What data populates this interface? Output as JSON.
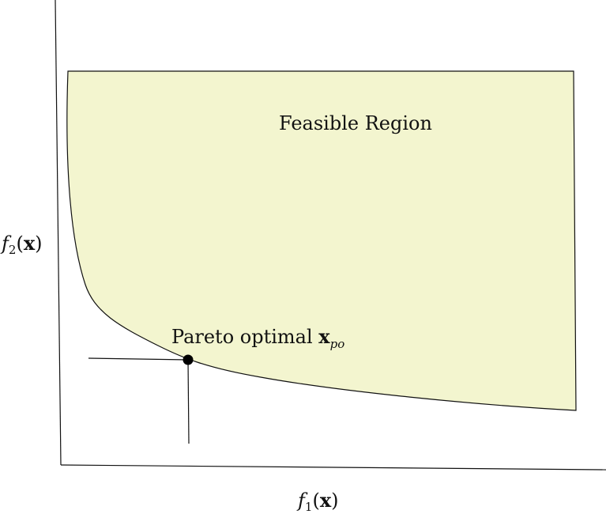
{
  "region_label": "Feasible Region",
  "pareto_label": {
    "text": "Pareto optimal ",
    "vector": "x",
    "subscript": "po"
  },
  "x_axis_label": {
    "func": "f",
    "index": "1",
    "arg_open": "(",
    "arg": "x",
    "arg_close": ")"
  },
  "y_axis_label": {
    "func": "f",
    "index": "2",
    "arg_open": "(",
    "arg": "x",
    "arg_close": ")"
  },
  "colors": {
    "region_fill": "#f3f5cf",
    "stroke": "#111111",
    "point": "#000000"
  }
}
